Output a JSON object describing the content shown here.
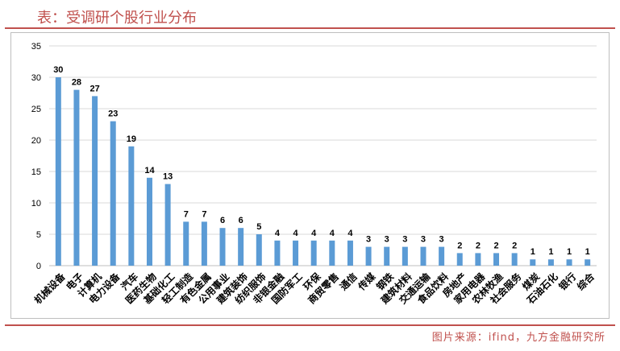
{
  "header": {
    "title": "表：受调研个股行业分布"
  },
  "footer": {
    "source": "图片来源：ifind，九方金融研究所"
  },
  "colors": {
    "bar": "#5b9bd5",
    "accent": "#c0504d",
    "grid": "#d9d9d9"
  },
  "chart_data": {
    "type": "bar",
    "title": "",
    "xlabel": "",
    "ylabel": "",
    "ylim": [
      0,
      35
    ],
    "yticks": [
      0,
      5,
      10,
      15,
      20,
      25,
      30,
      35
    ],
    "grid": true,
    "categories": [
      "机械设备",
      "电子",
      "计算机",
      "电力设备",
      "汽车",
      "医药生物",
      "基础化工",
      "轻工制造",
      "有色金属",
      "公用事业",
      "建筑装饰",
      "纺织服饰",
      "非银金融",
      "国防军工",
      "环保",
      "商贸零售",
      "通信",
      "传媒",
      "钢铁",
      "建筑材料",
      "交通运输",
      "食品饮料",
      "房地产",
      "家用电器",
      "农林牧渔",
      "社会服务",
      "煤炭",
      "石油石化",
      "银行",
      "综合"
    ],
    "values": [
      30,
      28,
      27,
      23,
      19,
      14,
      13,
      7,
      7,
      6,
      6,
      5,
      4,
      4,
      4,
      4,
      4,
      3,
      3,
      3,
      3,
      3,
      2,
      2,
      2,
      2,
      1,
      1,
      1,
      1
    ]
  }
}
